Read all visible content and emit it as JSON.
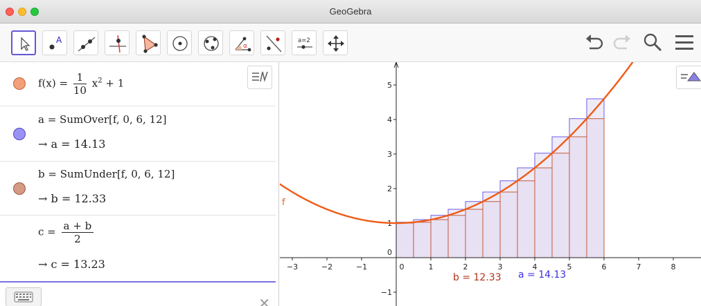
{
  "window": {
    "title": "GeoGebra"
  },
  "toolbar": {
    "tools": [
      {
        "name": "move-tool",
        "label": ""
      },
      {
        "name": "point-tool",
        "label": "A"
      },
      {
        "name": "line-tool",
        "label": ""
      },
      {
        "name": "perpendicular-line-tool",
        "label": ""
      },
      {
        "name": "polygon-tool",
        "label": ""
      },
      {
        "name": "circle-center-point-tool",
        "label": ""
      },
      {
        "name": "circle-three-points-tool",
        "label": ""
      },
      {
        "name": "angle-tool",
        "label": "α"
      },
      {
        "name": "reflect-tool",
        "label": ""
      },
      {
        "name": "slider-tool",
        "label": "a=2"
      },
      {
        "name": "move-graphics-view-tool",
        "label": ""
      }
    ],
    "right": [
      "undo-icon",
      "redo-icon",
      "search-icon",
      "menu-icon"
    ]
  },
  "algebra": {
    "rows": [
      {
        "color": "#f2a07a",
        "def_lhs": "f(x)",
        "eq": "=",
        "frac_num": "1",
        "frac_den": "10",
        "def_rhs_var": "x",
        "def_rhs_exp": "2",
        "def_rhs_tail": "+ 1"
      },
      {
        "color": "#9b93f4",
        "definition": "a = SumOver[f, 0, 6, 12]",
        "arrow": "→",
        "result": "a = 14.13"
      },
      {
        "color": "#d49a84",
        "definition": "b = SumUnder[f, 0, 6, 12]",
        "arrow": "→",
        "result": "b = 12.33"
      },
      {
        "color": null,
        "def_lhs": "c =",
        "frac_num": "a + b",
        "frac_den": "2",
        "arrow": "→",
        "result": "c = 13.23"
      }
    ]
  },
  "graphics": {
    "function_label": "f",
    "label_b": "b = 12.33",
    "label_a": "a = 14.13",
    "label_b_color": "#b1331b",
    "label_a_color": "#3b30e0",
    "curve_color": "#f05a14",
    "upper_color": "#6b5ce8",
    "lower_color": "#c05a3a",
    "fill_color": "#e2d8f0",
    "x_ticks": [
      "−3",
      "−2",
      "−1",
      "0",
      "1",
      "2",
      "3",
      "4",
      "5",
      "6",
      "7",
      "8"
    ],
    "y_ticks": [
      "−1",
      "0",
      "1",
      "2",
      "3",
      "4",
      "5"
    ]
  },
  "chart_data": {
    "type": "line",
    "title": "",
    "function": "f(x) = 1/10 x^2 + 1",
    "xlabel": "",
    "ylabel": "",
    "xlim": [
      -3.35,
      8.8
    ],
    "ylim": [
      -1.3,
      5.7
    ],
    "riemann": {
      "a": 0,
      "b": 6,
      "n": 12,
      "sum_over": 14.13,
      "sum_under": 12.33
    },
    "grid": false
  }
}
